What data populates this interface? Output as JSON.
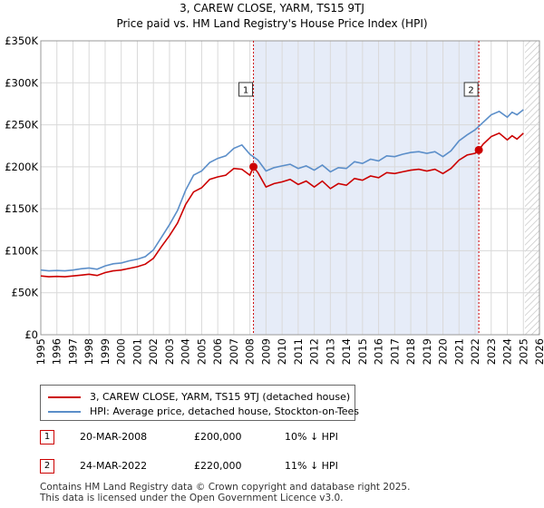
{
  "chart_data": {
    "type": "line",
    "title": "3, CAREW CLOSE, YARM, TS15 9TJ",
    "subtitle": "Price paid vs. HM Land Registry's House Price Index (HPI)",
    "xlabel": "",
    "ylabel": "",
    "xlim": [
      1995,
      2026
    ],
    "ylim": [
      0,
      350000
    ],
    "x_ticks": [
      "1995",
      "1996",
      "1997",
      "1998",
      "1999",
      "2000",
      "2001",
      "2002",
      "2003",
      "2004",
      "2005",
      "2006",
      "2007",
      "2008",
      "2009",
      "2010",
      "2011",
      "2012",
      "2013",
      "2014",
      "2015",
      "2016",
      "2017",
      "2018",
      "2019",
      "2020",
      "2021",
      "2022",
      "2023",
      "2024",
      "2025",
      "2026"
    ],
    "y_ticks": [
      {
        "value": 0,
        "label": "£0"
      },
      {
        "value": 50000,
        "label": "£50K"
      },
      {
        "value": 100000,
        "label": "£100K"
      },
      {
        "value": 150000,
        "label": "£150K"
      },
      {
        "value": 200000,
        "label": "£200K"
      },
      {
        "value": 250000,
        "label": "£250K"
      },
      {
        "value": 300000,
        "label": "£300K"
      },
      {
        "value": 350000,
        "label": "£350K"
      }
    ],
    "shaded_period": {
      "start": 2008.22,
      "end": 2022.23
    },
    "hatched_period": {
      "start": 2025.1,
      "end": 2026
    },
    "series": [
      {
        "name": "3, CAREW CLOSE, YARM, TS15 9TJ (detached house)",
        "color": "#cc0000",
        "x": [
          1995.0,
          1995.5,
          1996.0,
          1996.5,
          1997.0,
          1997.5,
          1998.0,
          1998.5,
          1999.0,
          1999.5,
          2000.0,
          2000.5,
          2001.0,
          2001.5,
          2002.0,
          2002.5,
          2003.0,
          2003.5,
          2004.0,
          2004.5,
          2005.0,
          2005.5,
          2006.0,
          2006.5,
          2007.0,
          2007.5,
          2008.0,
          2008.22,
          2008.5,
          2009.0,
          2009.5,
          2010.0,
          2010.5,
          2011.0,
          2011.5,
          2012.0,
          2012.5,
          2013.0,
          2013.5,
          2014.0,
          2014.5,
          2015.0,
          2015.5,
          2016.0,
          2016.5,
          2017.0,
          2017.5,
          2018.0,
          2018.5,
          2019.0,
          2019.5,
          2020.0,
          2020.5,
          2021.0,
          2021.5,
          2022.0,
          2022.23,
          2022.5,
          2023.0,
          2023.5,
          2024.0,
          2024.3,
          2024.6,
          2025.0
        ],
        "y": [
          70000,
          69000,
          69500,
          69000,
          70000,
          71000,
          72000,
          70500,
          74000,
          76000,
          77000,
          79000,
          81000,
          84000,
          91000,
          105000,
          118000,
          133000,
          155000,
          170000,
          175000,
          185000,
          188000,
          190000,
          198000,
          197000,
          190000,
          200000,
          193000,
          176000,
          180000,
          182000,
          185000,
          179000,
          183000,
          176000,
          183000,
          174000,
          180000,
          178000,
          186000,
          184000,
          189000,
          187000,
          193000,
          192000,
          194000,
          196000,
          197000,
          195000,
          197000,
          192000,
          198000,
          208000,
          214000,
          216000,
          220000,
          227000,
          236000,
          240000,
          232000,
          237000,
          233000,
          240000
        ]
      },
      {
        "name": "HPI: Average price, detached house, Stockton-on-Tees",
        "color": "#5b8ec9",
        "x": [
          1995.0,
          1995.5,
          1996.0,
          1996.5,
          1997.0,
          1997.5,
          1998.0,
          1998.5,
          1999.0,
          1999.5,
          2000.0,
          2000.5,
          2001.0,
          2001.5,
          2002.0,
          2002.5,
          2003.0,
          2003.5,
          2004.0,
          2004.5,
          2005.0,
          2005.5,
          2006.0,
          2006.5,
          2007.0,
          2007.5,
          2008.0,
          2008.5,
          2009.0,
          2009.5,
          2010.0,
          2010.5,
          2011.0,
          2011.5,
          2012.0,
          2012.5,
          2013.0,
          2013.5,
          2014.0,
          2014.5,
          2015.0,
          2015.5,
          2016.0,
          2016.5,
          2017.0,
          2017.5,
          2018.0,
          2018.5,
          2019.0,
          2019.5,
          2020.0,
          2020.5,
          2021.0,
          2021.5,
          2022.0,
          2022.5,
          2023.0,
          2023.5,
          2024.0,
          2024.3,
          2024.6,
          2025.0
        ],
        "y": [
          77000,
          76000,
          76500,
          76000,
          77000,
          78500,
          79500,
          78000,
          82000,
          84500,
          85500,
          88000,
          90000,
          93000,
          101000,
          116000,
          131000,
          148000,
          172000,
          190000,
          195000,
          205000,
          210000,
          213000,
          222000,
          226000,
          215000,
          208000,
          195000,
          199000,
          201000,
          203000,
          198000,
          201000,
          196000,
          202000,
          194000,
          199000,
          198000,
          206000,
          204000,
          209000,
          207000,
          213000,
          212000,
          215000,
          217000,
          218000,
          216000,
          218000,
          212000,
          219000,
          231000,
          238000,
          244000,
          253000,
          262000,
          266000,
          259000,
          265000,
          262000,
          268000
        ]
      }
    ],
    "annotations": [
      {
        "label": "1",
        "x": 2008.22,
        "y": 200000
      },
      {
        "label": "2",
        "x": 2022.23,
        "y": 220000
      }
    ]
  },
  "legend": {
    "items": [
      {
        "label": "3, CAREW CLOSE, YARM, TS15 9TJ (detached house)",
        "color": "#cc0000"
      },
      {
        "label": "HPI: Average price, detached house, Stockton-on-Tees",
        "color": "#5b8ec9"
      }
    ]
  },
  "transactions": [
    {
      "num": "1",
      "date": "20-MAR-2008",
      "price": "£200,000",
      "hpi": "10% ↓ HPI"
    },
    {
      "num": "2",
      "date": "24-MAR-2022",
      "price": "£220,000",
      "hpi": "11% ↓ HPI"
    }
  ],
  "footer": {
    "line1": "Contains HM Land Registry data © Crown copyright and database right 2025.",
    "line2": "This data is licensed under the Open Government Licence v3.0."
  }
}
